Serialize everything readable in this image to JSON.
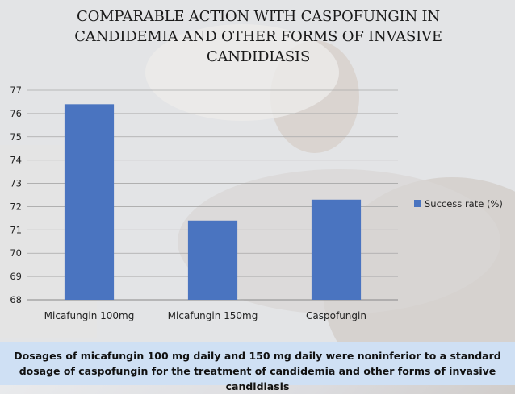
{
  "slide": {
    "title": "COMPARABLE ACTION WITH CASPOFUNGIN IN CANDIDEMIA AND OTHER FORMS OF INVASIVE CANDIDIASIS",
    "caption": "Dosages of micafungin 100 mg daily and 150 mg daily were noninferior to a standard dosage of caspofungin for the treatment of candidemia and other forms of invasive candidiasis"
  },
  "chart_data": {
    "type": "bar",
    "categories": [
      "Micafungin 100mg",
      "Micafungin 150mg",
      "Caspofungin"
    ],
    "series": [
      {
        "name": "Success rate (%)",
        "values": [
          76.4,
          71.4,
          72.3
        ],
        "color": "#4a74c0"
      }
    ],
    "ylim": [
      68,
      77
    ],
    "yticks": [
      68,
      69,
      70,
      71,
      72,
      73,
      74,
      75,
      76,
      77
    ],
    "grid": true,
    "legend": "right"
  }
}
